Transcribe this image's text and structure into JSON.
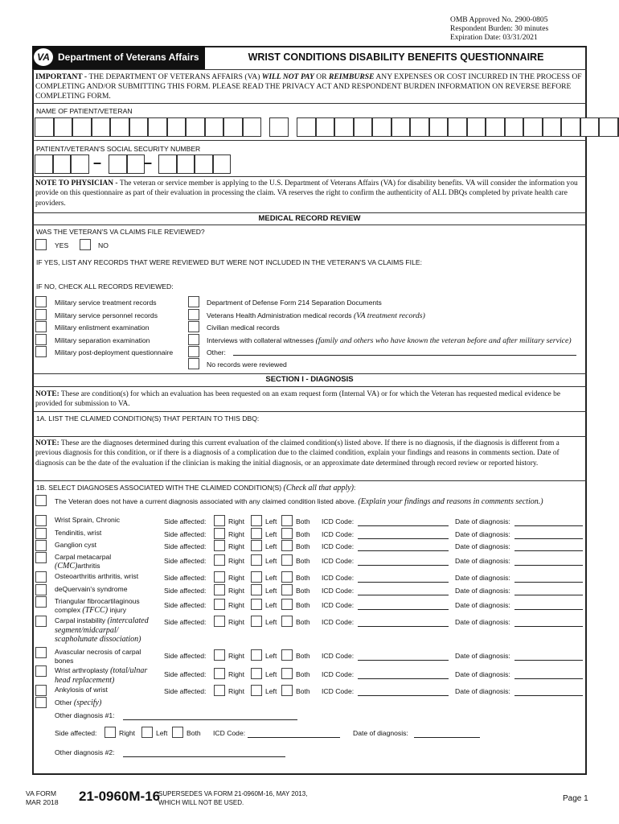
{
  "omb": {
    "approved": "OMB Approved No. 2900-0805",
    "burden": "Respondent Burden: 30 minutes",
    "expiration": "Expiration Date: 03/31/2021"
  },
  "header": {
    "agency": "Department of Veterans Affairs",
    "title": "WRIST CONDITIONS DISABILITY BENEFITS QUESTIONNAIRE",
    "logo": "VA"
  },
  "important": {
    "lead": "IMPORTANT - ",
    "t1": "THE DEPARTMENT OF VETERANS AFFAIRS (VA) ",
    "b1": "WILL NOT PAY",
    "t2": " OR ",
    "b2": "REIMBURSE",
    "t3": " ANY EXPENSES OR COST INCURRED IN THE PROCESS OF COMPLETING AND/OR SUBMITTING THIS FORM. PLEASE READ THE PRIVACY ACT AND RESPONDENT BURDEN INFORMATION ON REVERSE BEFORE COMPLETING FORM."
  },
  "name_label": "NAME OF PATIENT/VETERAN",
  "ssn_label": "PATIENT/VETERAN'S SOCIAL SECURITY NUMBER",
  "ssn_dash": "–",
  "note_physician": {
    "lead": "NOTE TO PHYSICIAN - ",
    "text": " The veteran or service member is applying to the U.S. Department of Veterans Affairs (VA) for disability benefits. VA will consider the information you provide on this questionnaire as part of their evaluation in processing the claim. VA reserves the right to confirm the authenticity of ALL DBQs completed by private health care providers."
  },
  "medical_review": {
    "title": "MEDICAL RECORD REVIEW",
    "question": "WAS THE VETERAN'S VA CLAIMS FILE REVIEWED?",
    "yes": "YES",
    "no": "NO",
    "if_yes": "IF YES, LIST ANY RECORDS THAT WERE REVIEWED BUT WERE NOT INCLUDED IN THE VETERAN'S VA CLAIMS FILE:",
    "if_no": "IF NO, CHECK ALL RECORDS REVIEWED:",
    "left_items": [
      "Military service treatment records",
      "Military service personnel records",
      "Military enlistment examination",
      "Military separation examination",
      "Military post-deployment questionnaire"
    ],
    "right_items": [
      {
        "text": "Department of Defense Form 214 Separation Documents",
        "note": ""
      },
      {
        "text": "Veterans Health Administration medical records ",
        "note": "(VA treatment records)"
      },
      {
        "text": "Civilian medical records",
        "note": ""
      },
      {
        "text": "Interviews with collateral witnesses ",
        "note": "(family and others who have known the veteran before and after military service)"
      },
      {
        "text": "Other:",
        "note": ""
      },
      {
        "text": "No records were reviewed",
        "note": ""
      }
    ]
  },
  "section1": {
    "title": "SECTION I - DIAGNOSIS",
    "note1": {
      "lead": "NOTE:",
      "text": " These are condition(s) for which an evaluation has been requested on an exam request form (Internal VA) or for which the Veteran has requested medical evidence be provided for submission to VA."
    },
    "q1a": "1A. LIST THE CLAIMED CONDITION(S) THAT PERTAIN TO THIS DBQ:",
    "note2": {
      "lead": "NOTE:",
      "text": " These are the diagnoses determined during this current evaluation of the claimed condition(s) listed above. If there is no diagnosis, if the diagnosis is different from a previous diagnosis for this condition, or if there is a diagnosis of a complication due to the claimed condition, explain your findings and reasons in comments section. Date of diagnosis can be the date of the evaluation if the clinician is making the initial diagnosis, or an approximate date determined through record review or reported history."
    },
    "q1b": "1B. SELECT DIAGNOSES ASSOCIATED WITH THE CLAIMED CONDITION(S) ",
    "q1b_note": "(Check all that apply)",
    "q1b_colon": ":",
    "no_diag": "The Veteran does not have a current diagnosis associated with any claimed condition listed above. ",
    "no_diag_note": "(Explain your findings and reasons in comments section.)",
    "side_label": "Side affected:",
    "right": "Right",
    "left": "Left",
    "both": "Both",
    "icd_label": "ICD Code:",
    "date_label": "Date of diagnosis:",
    "diagnoses": [
      {
        "text": "Wrist Sprain, Chronic",
        "note": ""
      },
      {
        "text": "Tendinitis, wrist",
        "note": ""
      },
      {
        "text": "Ganglion cyst",
        "note": ""
      },
      {
        "text": "Carpal metacarpal ",
        "note": "(CMC)",
        "text2": "arthritis"
      },
      {
        "text": "Osteoarthritis arthritis, wrist",
        "note": ""
      },
      {
        "text": "deQuervain's syndrome",
        "note": ""
      },
      {
        "text": "Triangular fibrocartilaginous complex ",
        "note": "(TFCC)",
        "text2": " injury"
      },
      {
        "text": "Carpal instability ",
        "note": "(intercalated segment/midcarpal/ scapholunate dissociation)"
      },
      {
        "text": "Avascular necrosis of carpal bones",
        "note": ""
      },
      {
        "text": "Wrist arthroplasty ",
        "note": "(total/ulnar head replacement)"
      },
      {
        "text": "Ankylosis of wrist",
        "note": ""
      }
    ],
    "other": "Other ",
    "other_note": "(specify)",
    "other1": "Other diagnosis #1:",
    "other2": "Other diagnosis #2:"
  },
  "footer": {
    "va_form": "VA FORM",
    "date": "MAR 2018",
    "form_no": "21-0960M-16",
    "supersedes1": "SUPERSEDES VA FORM 21-0960M-16, MAY 2013,",
    "supersedes2": "WHICH WILL NOT BE USED.",
    "page": "Page 1"
  }
}
